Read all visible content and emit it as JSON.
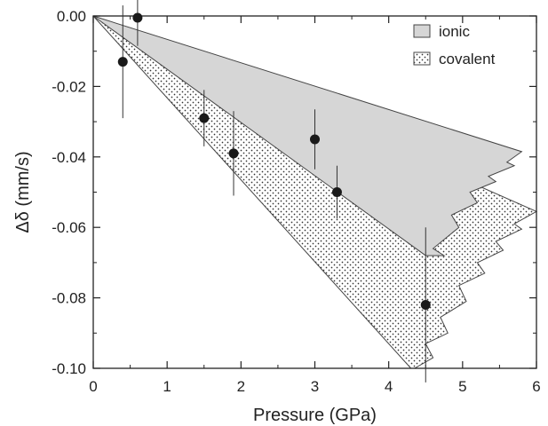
{
  "chart_data": {
    "type": "scatter",
    "xlabel": "Pressure (GPa)",
    "ylabel": "Δδ (mm/s)",
    "xlim": [
      0,
      6
    ],
    "ylim": [
      -0.1,
      0.0
    ],
    "x_ticks": [
      "0",
      "1",
      "2",
      "3",
      "4",
      "5",
      "6"
    ],
    "y_ticks": [
      "0.00",
      "-0.02",
      "-0.04",
      "-0.06",
      "-0.08",
      "-0.10"
    ],
    "legend": {
      "position": "top-right",
      "entries": [
        "ionic",
        "covalent"
      ]
    },
    "regions": [
      {
        "name": "ionic",
        "fill": "gray",
        "polygon": [
          [
            0,
            0
          ],
          [
            5.8,
            -0.0385
          ],
          [
            5.6,
            -0.0415
          ],
          [
            5.7,
            -0.0425
          ],
          [
            5.35,
            -0.0455
          ],
          [
            5.45,
            -0.047
          ],
          [
            5.1,
            -0.05
          ],
          [
            5.2,
            -0.053
          ],
          [
            4.85,
            -0.0565
          ],
          [
            4.95,
            -0.06
          ],
          [
            4.6,
            -0.066
          ],
          [
            4.75,
            -0.068
          ],
          [
            4.5,
            -0.068
          ]
        ]
      },
      {
        "name": "covalent",
        "fill": "dotted",
        "polygon": [
          [
            0,
            0
          ],
          [
            6.0,
            -0.0555
          ],
          [
            5.7,
            -0.059
          ],
          [
            5.8,
            -0.0605
          ],
          [
            5.45,
            -0.064
          ],
          [
            5.55,
            -0.0665
          ],
          [
            5.2,
            -0.07
          ],
          [
            5.3,
            -0.073
          ],
          [
            4.95,
            -0.0765
          ],
          [
            5.05,
            -0.081
          ],
          [
            4.7,
            -0.0855
          ],
          [
            4.8,
            -0.09
          ],
          [
            4.5,
            -0.093
          ],
          [
            4.6,
            -0.097
          ],
          [
            4.35,
            -0.1
          ],
          [
            4.3,
            -0.1
          ]
        ]
      }
    ],
    "series": [
      {
        "points": [
          {
            "x": 0.4,
            "y": -0.013,
            "y_err": 0.016
          },
          {
            "x": 0.6,
            "y": -0.0005,
            "y_err": 0.008
          },
          {
            "x": 1.5,
            "y": -0.029,
            "y_err": 0.008
          },
          {
            "x": 1.9,
            "y": -0.039,
            "y_err": 0.012
          },
          {
            "x": 3.0,
            "y": -0.035,
            "y_err": 0.0085
          },
          {
            "x": 3.3,
            "y": -0.05,
            "y_err": 0.0075
          },
          {
            "x": 4.5,
            "y": -0.082,
            "y_err": 0.022
          }
        ]
      }
    ]
  }
}
